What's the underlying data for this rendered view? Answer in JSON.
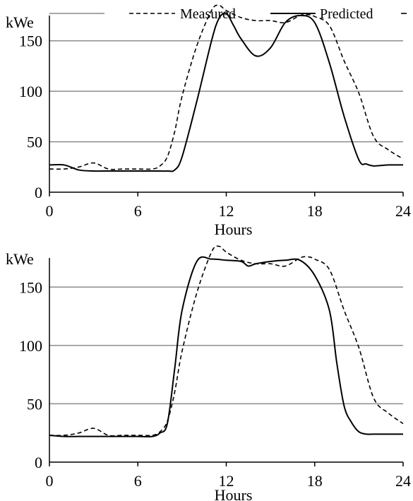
{
  "legend": {
    "entries": [
      {
        "label": "",
        "style": "gray"
      },
      {
        "label": "Measured",
        "style": "dashed"
      },
      {
        "label": "Predicted",
        "style": "solid"
      }
    ]
  },
  "chart_data": [
    {
      "type": "line",
      "ylabel": "kWe",
      "xlabel": "Hours",
      "xlim": [
        0,
        24
      ],
      "ylim": [
        0,
        175
      ],
      "xticks": [
        "0",
        "6",
        "12",
        "18",
        "24"
      ],
      "yticks": [
        "0",
        "50",
        "100",
        "150"
      ],
      "grid": true,
      "series": [
        {
          "name": "Measured",
          "style": "dashed",
          "x": [
            0,
            1,
            2,
            3,
            4,
            5,
            6,
            7,
            7.5,
            8,
            8.5,
            9,
            10,
            11,
            11.5,
            12,
            13,
            14,
            15,
            16,
            17,
            17.5,
            18,
            19,
            20,
            21,
            22,
            23,
            24
          ],
          "y": [
            23,
            23,
            25,
            29,
            23,
            23,
            23,
            23,
            26,
            35,
            60,
            95,
            145,
            180,
            185,
            180,
            173,
            170,
            170,
            168,
            175,
            176,
            174,
            165,
            130,
            98,
            55,
            42,
            33
          ]
        },
        {
          "name": "Predicted",
          "style": "solid",
          "x": [
            0,
            1,
            2,
            3,
            4,
            5,
            6,
            7,
            8,
            8.5,
            9,
            10,
            11,
            11.5,
            12,
            12.5,
            13,
            14,
            15,
            16,
            17,
            18,
            19,
            20,
            21,
            21.5,
            22,
            23,
            24
          ],
          "y": [
            27,
            27,
            22,
            21,
            21,
            21,
            21,
            21,
            21,
            22,
            35,
            90,
            150,
            172,
            177,
            165,
            152,
            135,
            143,
            168,
            175,
            168,
            128,
            75,
            32,
            28,
            26,
            27,
            27
          ]
        }
      ]
    },
    {
      "type": "line",
      "ylabel": "kWe",
      "xlabel": "Hours",
      "xlim": [
        0,
        24
      ],
      "ylim": [
        0,
        175
      ],
      "xticks": [
        "0",
        "6",
        "12",
        "18",
        "24"
      ],
      "yticks": [
        "0",
        "50",
        "100",
        "150"
      ],
      "grid": true,
      "series": [
        {
          "name": "Measured",
          "style": "dashed",
          "x": [
            0,
            1,
            2,
            3,
            4,
            5,
            6,
            7,
            7.5,
            8,
            8.5,
            9,
            10,
            11,
            11.5,
            12,
            13,
            14,
            15,
            16,
            17,
            17.5,
            18,
            19,
            20,
            21,
            22,
            23,
            24
          ],
          "y": [
            23,
            23,
            25,
            29,
            23,
            23,
            23,
            23,
            26,
            35,
            60,
            95,
            145,
            180,
            185,
            180,
            173,
            170,
            170,
            168,
            175,
            176,
            174,
            165,
            130,
            98,
            55,
            42,
            33
          ]
        },
        {
          "name": "Predicted",
          "style": "solid",
          "x": [
            0,
            1,
            2,
            3,
            4,
            5,
            6,
            7,
            7.5,
            8,
            8.5,
            9,
            10,
            11,
            12,
            13,
            13.5,
            14,
            15,
            16,
            17,
            18,
            19,
            19.5,
            20,
            20.5,
            21,
            21.5,
            22,
            23,
            24
          ],
          "y": [
            23,
            22,
            22,
            22,
            22,
            22,
            22,
            22,
            25,
            33,
            80,
            130,
            172,
            174,
            173,
            172,
            168,
            170,
            172,
            173,
            173,
            160,
            130,
            85,
            48,
            34,
            26,
            24,
            24,
            24,
            24
          ]
        }
      ]
    }
  ]
}
